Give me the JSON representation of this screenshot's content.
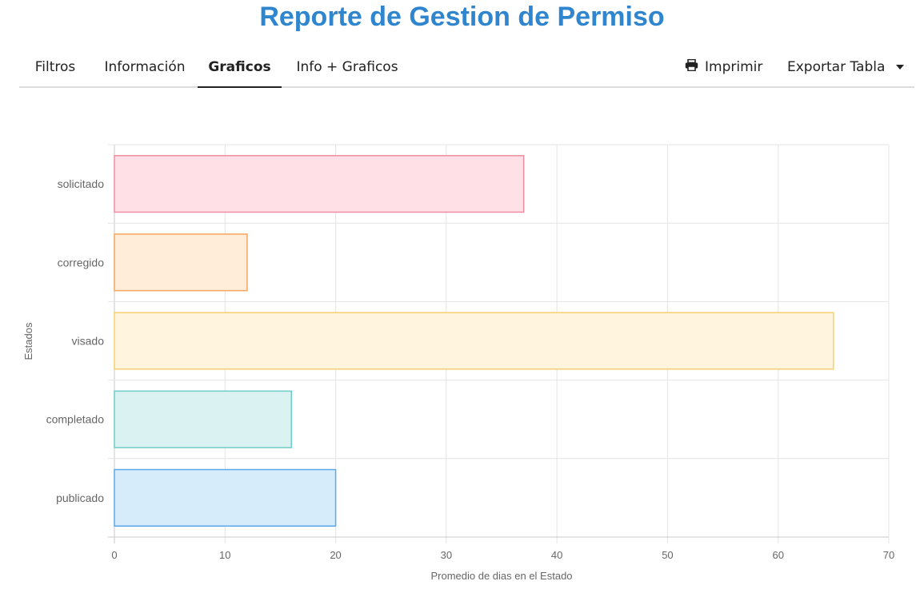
{
  "page": {
    "title": "Reporte de Gestion de Permiso"
  },
  "tabs": [
    {
      "label": "Filtros",
      "active": false
    },
    {
      "label": "Información",
      "active": false
    },
    {
      "label": "Graficos",
      "active": true
    },
    {
      "label": "Info + Graficos",
      "active": false
    }
  ],
  "toolbar": {
    "print_label": "Imprimir",
    "print_icon": "printer-icon",
    "export_label": "Exportar Tabla",
    "export_icon": "caret-down-icon"
  },
  "chart_data": {
    "type": "bar",
    "orientation": "horizontal",
    "categories": [
      "solicitado",
      "corregido",
      "visado",
      "completado",
      "publicado"
    ],
    "values": [
      37,
      12,
      65,
      16,
      20
    ],
    "colors": [
      {
        "fill": "#ffe0e6",
        "stroke": "#ee8ea4"
      },
      {
        "fill": "#ffecd9",
        "stroke": "#f5a55e"
      },
      {
        "fill": "#fff4dd",
        "stroke": "#f8cf6e"
      },
      {
        "fill": "#dbf2f2",
        "stroke": "#6fcdc8"
      },
      {
        "fill": "#d7ecfb",
        "stroke": "#5aa9e8"
      }
    ],
    "xlabel": "Promedio de dias en el Estado",
    "ylabel": "Estados",
    "xlim": [
      0,
      70
    ],
    "xticks": [
      "0",
      "10",
      "20",
      "30",
      "40",
      "50",
      "60",
      "70"
    ],
    "grid": true,
    "legend": false
  }
}
